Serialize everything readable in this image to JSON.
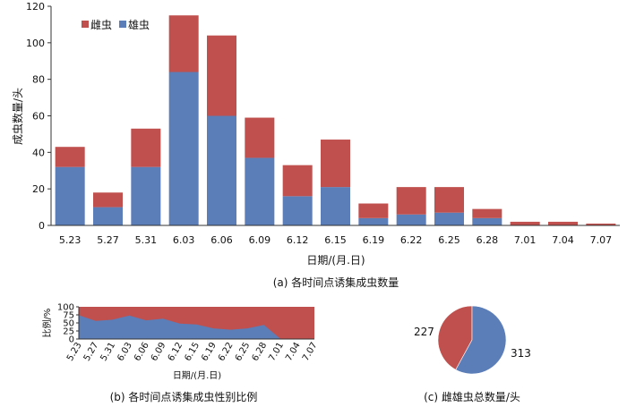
{
  "colors": {
    "female": "#c0504d",
    "male": "#5b7db8"
  },
  "chart_data": [
    {
      "type": "bar",
      "stacked": true,
      "caption": "(a) 各时间点诱集成虫数量",
      "xlabel": "日期/(月.日)",
      "ylabel": "成虫数量/头",
      "ylim": [
        0,
        120
      ],
      "yticks": [
        0,
        20,
        40,
        60,
        80,
        100,
        120
      ],
      "legend": [
        "雌虫",
        "雄虫"
      ],
      "legend_position": "top-left",
      "categories": [
        "5.23",
        "5.27",
        "5.31",
        "6.03",
        "6.06",
        "6.09",
        "6.12",
        "6.15",
        "6.19",
        "6.22",
        "6.25",
        "6.28",
        "7.01",
        "7.04",
        "7.07"
      ],
      "series": [
        {
          "name": "雄虫",
          "values": [
            32,
            10,
            32,
            84,
            60,
            37,
            16,
            21,
            4,
            6,
            7,
            4,
            0,
            0,
            0
          ]
        },
        {
          "name": "雌虫",
          "values": [
            11,
            8,
            21,
            31,
            44,
            22,
            17,
            26,
            8,
            15,
            14,
            5,
            2,
            2,
            1
          ]
        }
      ],
      "grid": false
    },
    {
      "type": "area",
      "caption": "(b) 各时间点诱集成虫性别比例",
      "xlabel": "日期/(月.日)",
      "ylabel": "比例/%",
      "ylim": [
        0,
        100
      ],
      "yticks": [
        0,
        25,
        50,
        75,
        100
      ],
      "categories": [
        "5.23",
        "5.27",
        "5.31",
        "6.03",
        "6.06",
        "6.09",
        "6.12",
        "6.15",
        "6.19",
        "6.22",
        "6.25",
        "6.28",
        "7.01",
        "7.04",
        "7.07"
      ],
      "male_percent": [
        74,
        56,
        60,
        73,
        58,
        63,
        48,
        45,
        33,
        29,
        33,
        44,
        0,
        0,
        0
      ],
      "grid": false
    },
    {
      "type": "pie",
      "caption": "(c) 雌雄虫总数量/头",
      "slices": [
        {
          "label": "227",
          "value": 227,
          "color_key": "female"
        },
        {
          "label": "313",
          "value": 313,
          "color_key": "male"
        }
      ]
    }
  ]
}
